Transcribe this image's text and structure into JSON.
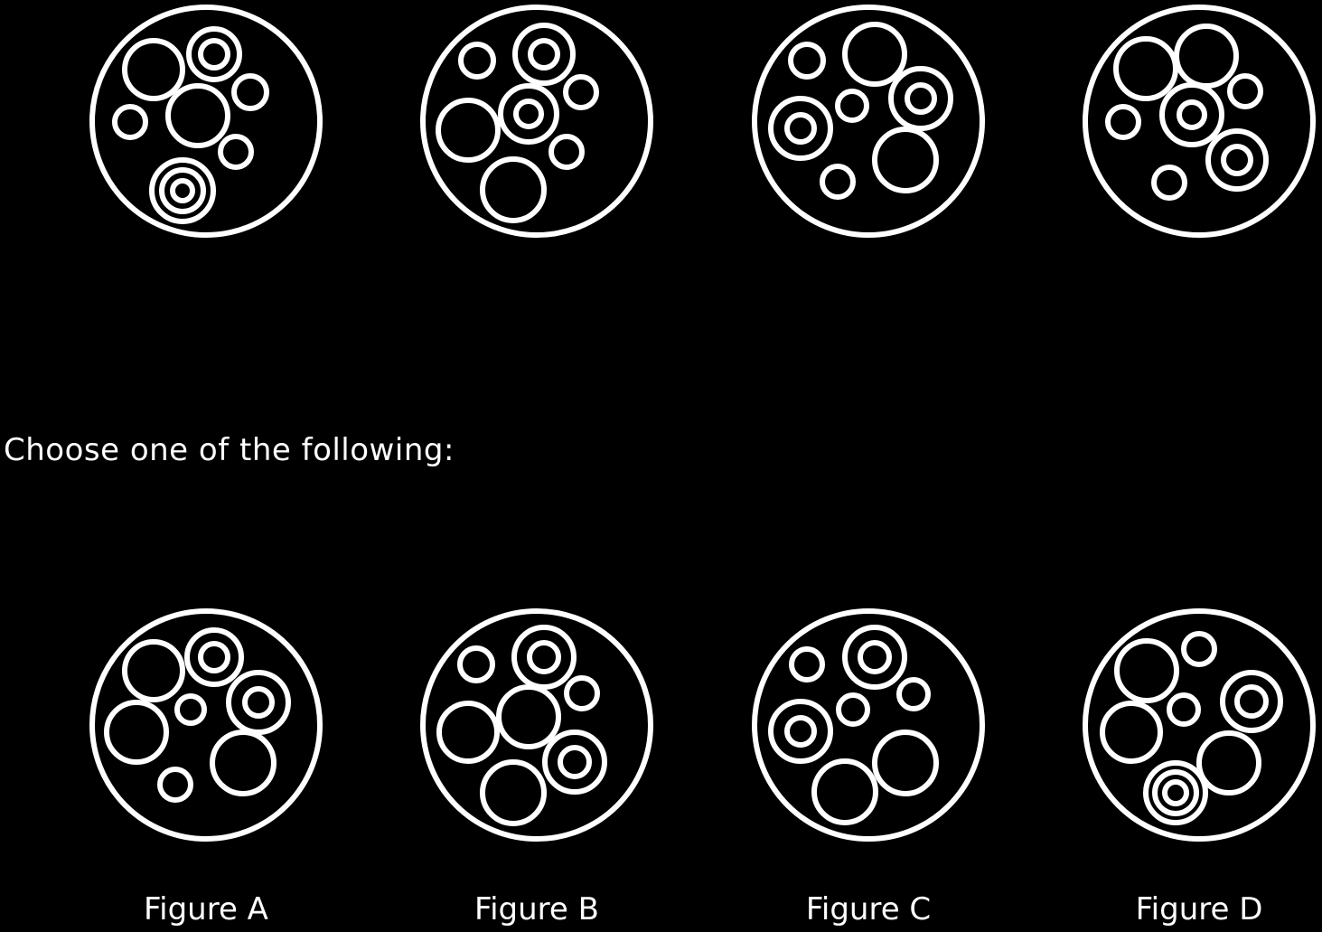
{
  "prompt": "Choose one of the following:",
  "colors": {
    "background": "#000000",
    "stroke": "#ffffff"
  },
  "options": [
    {
      "label": "Figure A"
    },
    {
      "label": "Figure B"
    },
    {
      "label": "Figure C"
    },
    {
      "label": "Figure D"
    }
  ]
}
